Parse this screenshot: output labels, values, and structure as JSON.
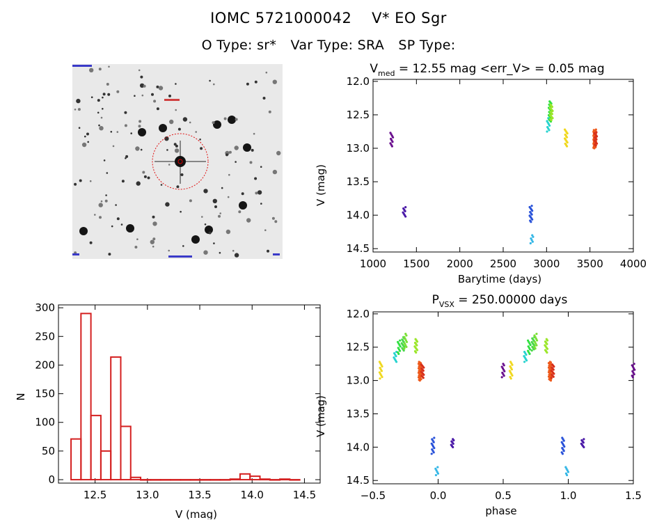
{
  "header": {
    "title_id": "IOMC 5721000042",
    "title_name": "V* EO Sgr",
    "o_type": "O Type: sr*",
    "var_type": "Var Type: SRA",
    "sp_type": "SP Type:"
  },
  "sky_image": {
    "description_color": "#ff0000"
  },
  "chart_data": [
    {
      "id": "light_curve",
      "type": "scatter",
      "title_main": "V",
      "title_sub": "med",
      "title_rest": " = 12.55 mag <err_V> = 0.05 mag",
      "xlabel": "Barytime (days)",
      "ylabel": "V (mag)",
      "xlim": [
        1000,
        4000
      ],
      "ylim": [
        14.55,
        11.97
      ],
      "y_inverted": true,
      "xticks": [
        1000,
        1500,
        2000,
        2500,
        3000,
        3500,
        4000
      ],
      "xtick_labels": [
        "1000",
        "1500",
        "2000",
        "2500",
        "3000",
        "3500",
        "4000"
      ],
      "yticks": [
        12.0,
        12.5,
        13.0,
        13.5,
        14.0,
        14.5
      ],
      "ytick_labels": [
        "12.0",
        "12.5",
        "13.0",
        "13.5",
        "14.0",
        "14.5"
      ],
      "clusters": [
        {
          "x": 1215,
          "y_min": 12.77,
          "y_max": 12.97,
          "color": "#6a0f8e",
          "n": 10
        },
        {
          "x": 1360,
          "y_min": 13.88,
          "y_max": 14.02,
          "color": "#4b1aa8",
          "n": 8
        },
        {
          "x": 2820,
          "y_min": 13.86,
          "y_max": 14.1,
          "color": "#2952d9",
          "n": 14
        },
        {
          "x": 2830,
          "y_min": 14.3,
          "y_max": 14.42,
          "color": "#35b7e6",
          "n": 6
        },
        {
          "x": 3020,
          "y_min": 12.55,
          "y_max": 12.75,
          "color": "#27d3cf",
          "n": 10
        },
        {
          "x": 3040,
          "y_min": 12.3,
          "y_max": 12.6,
          "color": "#2fe040",
          "n": 20
        },
        {
          "x": 3055,
          "y_min": 12.35,
          "y_max": 12.58,
          "color": "#9be62a",
          "n": 16
        },
        {
          "x": 3225,
          "y_min": 12.72,
          "y_max": 12.97,
          "color": "#f0d81e",
          "n": 14
        },
        {
          "x": 3555,
          "y_min": 12.72,
          "y_max": 13.0,
          "color": "#ee5a1c",
          "n": 34
        },
        {
          "x": 3565,
          "y_min": 12.76,
          "y_max": 12.96,
          "color": "#d8301a",
          "n": 14
        }
      ]
    },
    {
      "id": "histogram",
      "type": "bar",
      "xlabel": "V (mag)",
      "ylabel": "N",
      "xlim": [
        12.15,
        14.65
      ],
      "ylim": [
        -6,
        305
      ],
      "xticks": [
        12.5,
        13.0,
        13.5,
        14.0,
        14.5
      ],
      "xtick_labels": [
        "12.5",
        "13.0",
        "13.5",
        "14.0",
        "14.5"
      ],
      "yticks": [
        0,
        50,
        100,
        150,
        200,
        250,
        300
      ],
      "ytick_labels": [
        "0",
        "50",
        "100",
        "150",
        "200",
        "250",
        "300"
      ],
      "bin_width": 0.095,
      "bin_starts": [
        12.27,
        12.365,
        12.46,
        12.555,
        12.65,
        12.745,
        12.84,
        12.935,
        13.03,
        13.125,
        13.22,
        13.315,
        13.41,
        13.505,
        13.6,
        13.695,
        13.79,
        13.885,
        13.98,
        14.075,
        14.17,
        14.265,
        14.36
      ],
      "values": [
        71,
        290,
        112,
        50,
        214,
        93,
        4,
        0,
        0,
        0,
        0,
        0,
        0,
        0,
        0,
        0,
        1,
        10,
        6,
        1,
        0,
        1,
        0
      ],
      "color": "#d42020"
    },
    {
      "id": "phase_curve",
      "type": "scatter",
      "title_main": "P",
      "title_sub": "VSX",
      "title_rest": " = 250.00000 days",
      "xlabel": "phase",
      "ylabel": "V (mag)",
      "xlim": [
        -0.5,
        1.5
      ],
      "ylim": [
        14.55,
        11.97
      ],
      "y_inverted": true,
      "xticks": [
        -0.5,
        0.0,
        0.5,
        1.0,
        1.5
      ],
      "xtick_labels": [
        "−0.5",
        "0.0",
        "0.5",
        "1.0",
        "1.5"
      ],
      "yticks": [
        12.0,
        12.5,
        13.0,
        13.5,
        14.0,
        14.5
      ],
      "ytick_labels": [
        "12.0",
        "12.5",
        "13.0",
        "13.5",
        "14.0",
        "14.5"
      ],
      "clusters": [
        {
          "x": -0.44,
          "y_min": 12.72,
          "y_max": 12.97,
          "color": "#f0d81e",
          "n": 12
        },
        {
          "x": -0.33,
          "y_min": 12.57,
          "y_max": 12.72,
          "color": "#27d3cf",
          "n": 8
        },
        {
          "x": -0.3,
          "y_min": 12.4,
          "y_max": 12.6,
          "color": "#2fe040",
          "n": 10
        },
        {
          "x": -0.27,
          "y_min": 12.35,
          "y_max": 12.55,
          "color": "#4cd84a",
          "n": 12
        },
        {
          "x": -0.25,
          "y_min": 12.3,
          "y_max": 12.52,
          "color": "#7ae035",
          "n": 10
        },
        {
          "x": -0.17,
          "y_min": 12.38,
          "y_max": 12.58,
          "color": "#9be62a",
          "n": 12
        },
        {
          "x": -0.14,
          "y_min": 12.72,
          "y_max": 13.0,
          "color": "#ee5a1c",
          "n": 30
        },
        {
          "x": -0.12,
          "y_min": 12.76,
          "y_max": 12.96,
          "color": "#d8301a",
          "n": 14
        },
        {
          "x": -0.04,
          "y_min": 13.86,
          "y_max": 14.1,
          "color": "#2952d9",
          "n": 12
        },
        {
          "x": -0.01,
          "y_min": 14.3,
          "y_max": 14.42,
          "color": "#35b7e6",
          "n": 6
        },
        {
          "x": 0.11,
          "y_min": 13.88,
          "y_max": 14.0,
          "color": "#4b1aa8",
          "n": 8
        },
        {
          "x": 0.5,
          "y_min": 12.75,
          "y_max": 12.95,
          "color": "#6a0f8e",
          "n": 10
        },
        {
          "x": 0.56,
          "y_min": 12.72,
          "y_max": 12.97,
          "color": "#f0d81e",
          "n": 12
        },
        {
          "x": 0.67,
          "y_min": 12.57,
          "y_max": 12.72,
          "color": "#27d3cf",
          "n": 8
        },
        {
          "x": 0.7,
          "y_min": 12.4,
          "y_max": 12.6,
          "color": "#2fe040",
          "n": 10
        },
        {
          "x": 0.73,
          "y_min": 12.35,
          "y_max": 12.55,
          "color": "#4cd84a",
          "n": 12
        },
        {
          "x": 0.75,
          "y_min": 12.3,
          "y_max": 12.52,
          "color": "#7ae035",
          "n": 10
        },
        {
          "x": 0.83,
          "y_min": 12.38,
          "y_max": 12.58,
          "color": "#9be62a",
          "n": 12
        },
        {
          "x": 0.86,
          "y_min": 12.72,
          "y_max": 13.0,
          "color": "#ee5a1c",
          "n": 30
        },
        {
          "x": 0.88,
          "y_min": 12.76,
          "y_max": 12.96,
          "color": "#d8301a",
          "n": 14
        },
        {
          "x": 0.96,
          "y_min": 13.86,
          "y_max": 14.1,
          "color": "#2952d9",
          "n": 12
        },
        {
          "x": 0.99,
          "y_min": 14.3,
          "y_max": 14.42,
          "color": "#35b7e6",
          "n": 6
        },
        {
          "x": 1.11,
          "y_min": 13.88,
          "y_max": 14.0,
          "color": "#4b1aa8",
          "n": 8
        },
        {
          "x": 1.5,
          "y_min": 12.75,
          "y_max": 12.95,
          "color": "#6a0f8e",
          "n": 10
        }
      ]
    }
  ]
}
